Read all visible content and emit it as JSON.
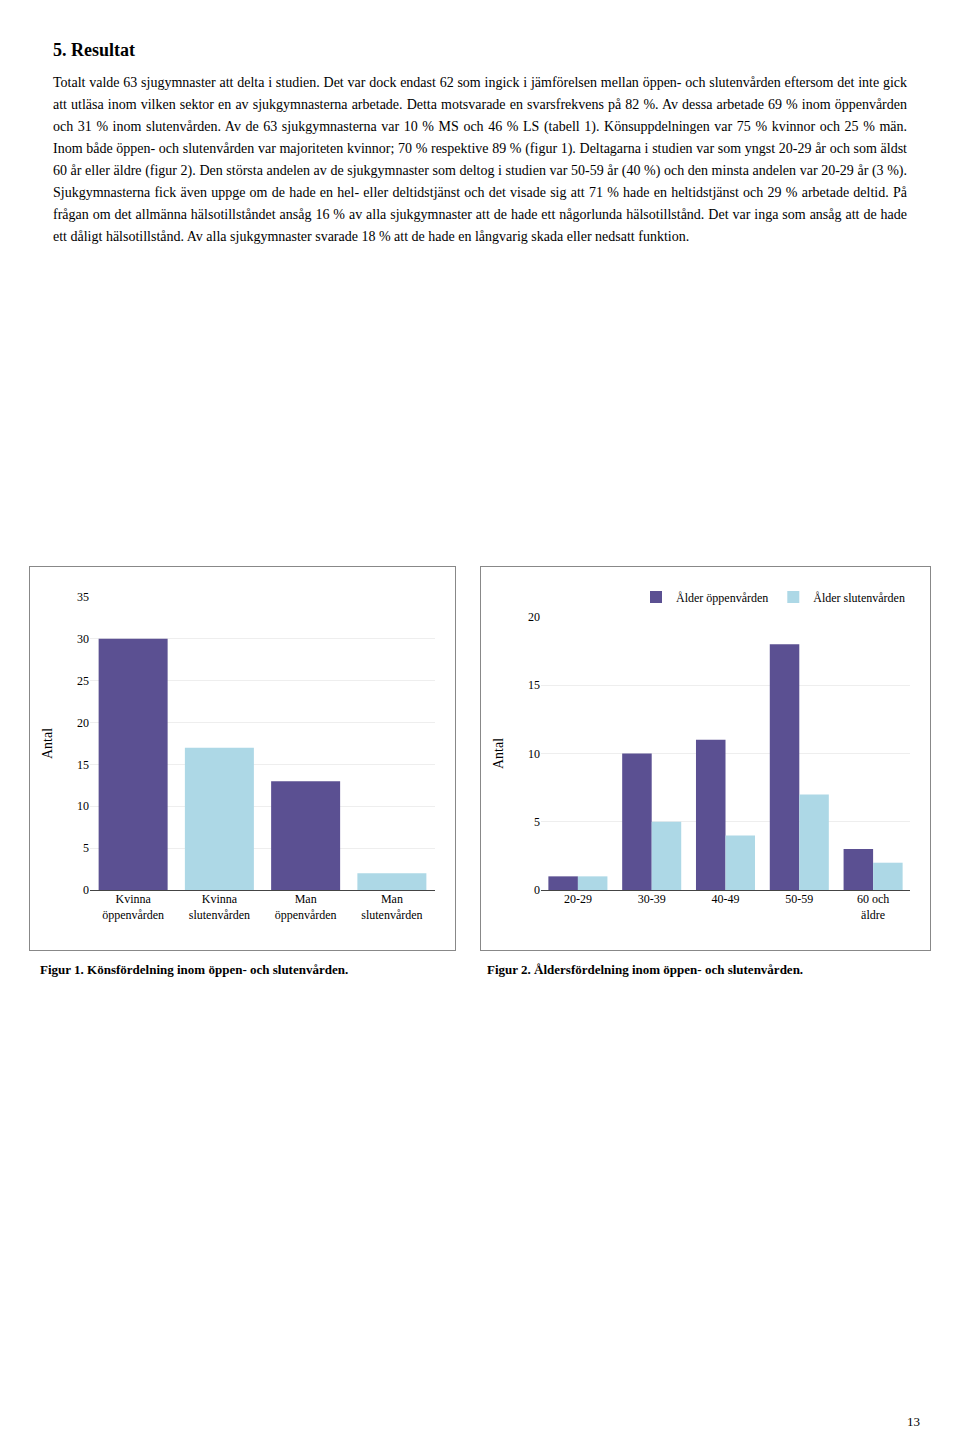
{
  "title": "5. Resultat",
  "text": "Totalt valde 63 sjugymnaster att delta i studien. Det var dock endast 62 som ingick i jämförelsen mellan öppen- och slutenvården eftersom det inte gick att utläsa inom vilken sektor en av sjukgymnasterna arbetade. Detta motsvarade en svarsfrekvens på 82 %. Av dessa arbetade 69 % inom öppenvården och 31 % inom slutenvården. Av de 63 sjukgymnasterna var 10 % MS och 46 % LS (tabell 1). Könsuppdelningen var 75 % kvinnor och 25 % män. Inom både öppen- och slutenvården var majoriteten kvinnor; 70 % respektive 89 % (figur 1). Deltagarna i studien var som yngst 20-29 år och som äldst 60 år eller äldre (figur 2). Den största andelen av de sjukgymnaster som deltog i studien var 50-59 år (40 %) och den minsta andelen var 20-29 år (3 %). Sjukgymnasterna fick även uppge om de hade en hel- eller deltidstjänst och det visade sig att 71 % hade en heltidstjänst och 29 % arbetade deltid. På frågan om det allmänna hälsotillståndet ansåg 16 % av alla sjukgymnaster att de hade ett någorlunda hälsotillstånd. Det var inga som ansåg att de hade ett dåligt hälsotillstånd. Av alla sjukgymnaster svarade 18 % att de hade en långvarig skada eller nedsatt funktion.",
  "page_number": "13",
  "chart_data": [
    {
      "type": "bar",
      "title": "Figur 1. Könsfördelning inom öppen- och slutenvården.",
      "categories": [
        "Kvinna\nöppenvården",
        "Kvinna\nslutenvården",
        "Man\nöppenvården",
        "Man\nslutenvården"
      ],
      "values": [
        30,
        17,
        13,
        2
      ],
      "colors": [
        "#5b5092",
        "#add8e6",
        "#5b5092",
        "#add8e6"
      ],
      "ylabel": "Antal",
      "ylim": [
        0,
        35
      ],
      "yticks": [
        0,
        5,
        10,
        15,
        20,
        25,
        30,
        35
      ],
      "grid": true
    },
    {
      "type": "bar",
      "title": "Figur 2.  Åldersfördelning inom öppen- och slutenvården.",
      "categories": [
        "20-29",
        "30-39",
        "40-49",
        "50-59",
        "60 och\näldre"
      ],
      "series": [
        {
          "name": "Ålder öppenvården",
          "color": "#5b5092",
          "values": [
            1,
            10,
            11,
            18,
            3
          ]
        },
        {
          "name": "Ålder slutenvården",
          "color": "#add8e6",
          "values": [
            1,
            5,
            4,
            7,
            2
          ]
        }
      ],
      "ylabel": "Antal",
      "ylim": [
        0,
        20
      ],
      "yticks": [
        0,
        5,
        10,
        15,
        20
      ],
      "grid": true,
      "legend": "upper right"
    }
  ]
}
